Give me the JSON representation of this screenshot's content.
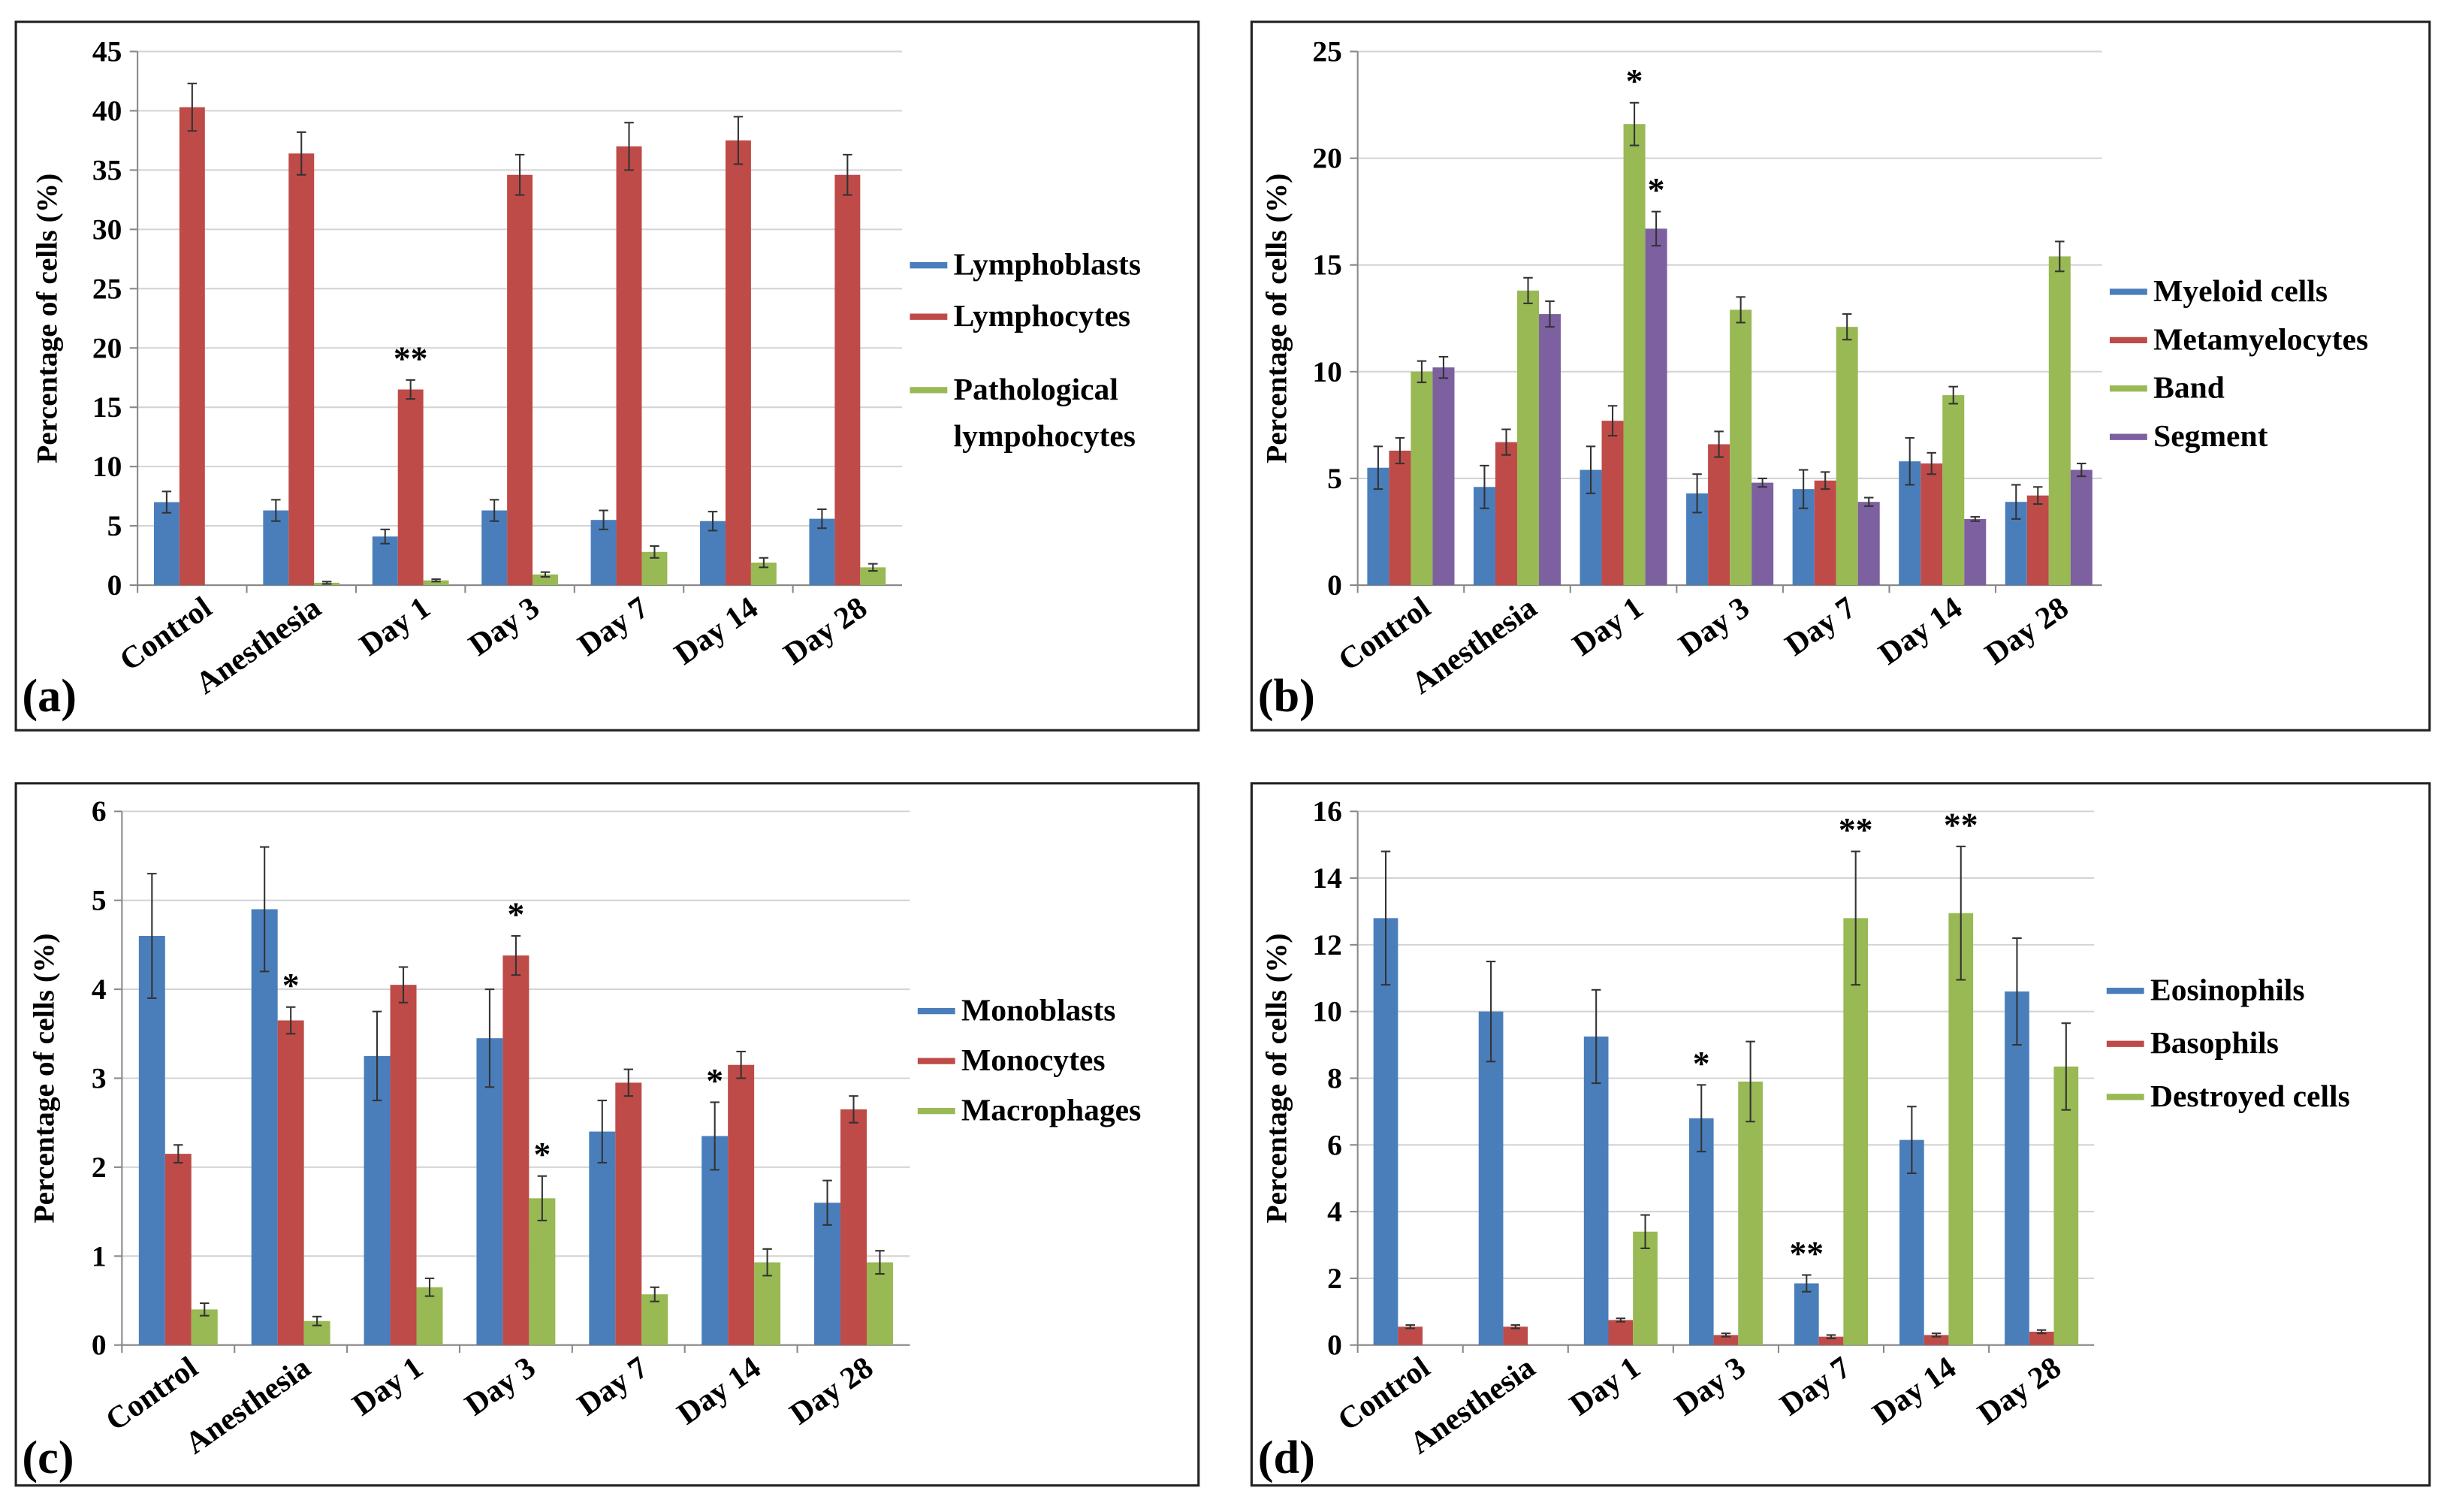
{
  "chart_data": [
    {
      "type": "bar",
      "panel_label": "(a)",
      "y_label": "Percentage of cells (%)",
      "categories": [
        "Control",
        "Anesthesia",
        "Day 1",
        "Day 3",
        "Day 7",
        "Day 14",
        "Day 28"
      ],
      "series": [
        {
          "name": "Lymphoblasts",
          "color": "#4a7ebb",
          "values": [
            7,
            6.3,
            4.1,
            6.3,
            5.5,
            5.4,
            5.6
          ],
          "errors": [
            0.9,
            0.9,
            0.6,
            0.9,
            0.8,
            0.8,
            0.8
          ]
        },
        {
          "name": "Lymphocytes",
          "color": "#be4b48",
          "values": [
            40.3,
            36.4,
            16.5,
            34.6,
            37.0,
            37.5,
            34.6
          ],
          "errors": [
            2.0,
            1.8,
            0.8,
            1.7,
            2.0,
            2.0,
            1.7
          ]
        },
        {
          "name": "Pathological lympohocytes",
          "color": "#98b954",
          "values": [
            null,
            0.2,
            0.4,
            0.9,
            2.8,
            1.9,
            1.5
          ],
          "errors": [
            null,
            0.1,
            0.1,
            0.2,
            0.5,
            0.4,
            0.3
          ]
        }
      ],
      "ylim": [
        0,
        45
      ],
      "yticks": [
        0,
        5,
        10,
        15,
        20,
        25,
        30,
        35,
        40,
        45
      ],
      "grid": true,
      "legend": "right",
      "annotations": [
        {
          "text": "**",
          "category": "Day 1",
          "series": "Lymphocytes"
        }
      ]
    },
    {
      "type": "bar",
      "panel_label": "(b)",
      "y_label": "Percentage of cells (%)",
      "categories": [
        "Control",
        "Anesthesia",
        "Day 1",
        "Day 3",
        "Day 7",
        "Day 14",
        "Day 28"
      ],
      "series": [
        {
          "name": "Myeloid cells",
          "color": "#4a7ebb",
          "values": [
            5.5,
            4.6,
            5.4,
            4.3,
            4.5,
            5.8,
            3.9
          ],
          "errors": [
            1.0,
            1.0,
            1.1,
            0.9,
            0.9,
            1.1,
            0.8
          ]
        },
        {
          "name": "Metamyelocytes",
          "color": "#be4b48",
          "values": [
            6.3,
            6.7,
            7.7,
            6.6,
            4.9,
            5.7,
            4.2
          ],
          "errors": [
            0.6,
            0.6,
            0.7,
            0.6,
            0.4,
            0.5,
            0.4
          ]
        },
        {
          "name": "Band",
          "color": "#98b954",
          "values": [
            10,
            13.8,
            21.6,
            12.9,
            12.1,
            8.9,
            15.4
          ],
          "errors": [
            0.5,
            0.6,
            1.0,
            0.6,
            0.6,
            0.4,
            0.7
          ]
        },
        {
          "name": "Segment",
          "color": "#7d60a0",
          "values": [
            10.2,
            12.7,
            16.7,
            4.8,
            3.9,
            3.1,
            5.4
          ],
          "errors": [
            0.5,
            0.6,
            0.8,
            0.2,
            0.2,
            0.1,
            0.3
          ]
        }
      ],
      "ylim": [
        0,
        25
      ],
      "yticks": [
        0,
        5,
        10,
        15,
        20,
        25
      ],
      "grid": true,
      "legend": "right",
      "annotations": [
        {
          "text": "*",
          "category": "Day 1",
          "series": "Band"
        },
        {
          "text": "*",
          "category": "Day 1",
          "series": "Segment"
        }
      ]
    },
    {
      "type": "bar",
      "panel_label": "(c)",
      "y_label": "Percentage of cells (%)",
      "categories": [
        "Control",
        "Anesthesia",
        "Day 1",
        "Day 3",
        "Day 7",
        "Day 14",
        "Day 28"
      ],
      "series": [
        {
          "name": "Monoblasts",
          "color": "#4a7ebb",
          "values": [
            4.6,
            4.9,
            3.25,
            3.45,
            2.4,
            2.35,
            1.6
          ],
          "errors": [
            0.7,
            0.7,
            0.5,
            0.55,
            0.35,
            0.38,
            0.25
          ]
        },
        {
          "name": "Monocytes",
          "color": "#be4b48",
          "values": [
            2.15,
            3.65,
            4.05,
            4.38,
            2.95,
            3.15,
            2.65
          ],
          "errors": [
            0.1,
            0.15,
            0.2,
            0.22,
            0.15,
            0.15,
            0.15
          ]
        },
        {
          "name": "Macrophages",
          "color": "#98b954",
          "values": [
            0.4,
            0.27,
            0.65,
            1.65,
            0.57,
            0.93,
            0.93
          ],
          "errors": [
            0.07,
            0.05,
            0.1,
            0.25,
            0.08,
            0.15,
            0.13
          ]
        }
      ],
      "ylim": [
        0,
        6
      ],
      "yticks": [
        0,
        1,
        2,
        3,
        4,
        5,
        6
      ],
      "grid": true,
      "legend": "right",
      "annotations": [
        {
          "text": "*",
          "category": "Anesthesia",
          "series": "Monocytes"
        },
        {
          "text": "*",
          "category": "Day 3",
          "series": "Monocytes"
        },
        {
          "text": "*",
          "category": "Day 3",
          "series": "Macrophages"
        },
        {
          "text": "*",
          "category": "Day 14",
          "series": "Monoblasts"
        }
      ]
    },
    {
      "type": "bar",
      "panel_label": "(d)",
      "y_label": "Percentage of cells (%)",
      "categories": [
        "Control",
        "Anesthesia",
        "Day 1",
        "Day 3",
        "Day 7",
        "Day 14",
        "Day 28"
      ],
      "series": [
        {
          "name": "Eosinophils",
          "color": "#4a7ebb",
          "values": [
            12.8,
            10,
            9.25,
            6.8,
            1.85,
            6.15,
            10.6
          ],
          "errors": [
            2.0,
            1.5,
            1.4,
            1.0,
            0.25,
            1.0,
            1.6
          ]
        },
        {
          "name": "Basophils",
          "color": "#be4b48",
          "values": [
            0.55,
            0.55,
            0.75,
            0.3,
            0.25,
            0.3,
            0.4
          ],
          "errors": [
            0.05,
            0.05,
            0.05,
            0.05,
            0.05,
            0.05,
            0.05
          ]
        },
        {
          "name": "Destroyed cells",
          "color": "#98b954",
          "values": [
            null,
            null,
            3.4,
            7.9,
            12.8,
            12.95,
            8.35
          ],
          "errors": [
            null,
            null,
            0.5,
            1.2,
            2.0,
            2.0,
            1.3
          ]
        }
      ],
      "ylim": [
        0,
        16
      ],
      "yticks": [
        0,
        2,
        4,
        6,
        8,
        10,
        12,
        14,
        16
      ],
      "grid": true,
      "legend": "right",
      "annotations": [
        {
          "text": "*",
          "category": "Day 3",
          "series": "Eosinophils"
        },
        {
          "text": "**",
          "category": "Day 7",
          "series": "Eosinophils"
        },
        {
          "text": "**",
          "category": "Day 7",
          "series": "Destroyed cells"
        },
        {
          "text": "**",
          "category": "Day 14",
          "series": "Destroyed cells"
        }
      ]
    }
  ]
}
